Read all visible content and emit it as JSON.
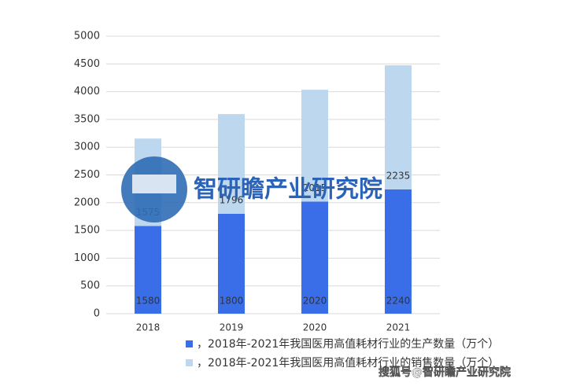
{
  "chart_data": {
    "type": "stacked_bar",
    "categories": [
      "2018",
      "2019",
      "2020",
      "2021"
    ],
    "series": [
      {
        "name": "，2018年-2021年我国医用高值耗材行业的生产数量（万个）",
        "color": "#3a6ee8",
        "values": [
          1580,
          1800,
          2020,
          2240
        ]
      },
      {
        "name": "，2018年-2021年我国医用高值耗材行业的销售数量（万个）",
        "color": "#bdd7ee",
        "values": [
          1575,
          1796,
          2015,
          2235
        ]
      }
    ],
    "ylim": [
      0,
      5000
    ],
    "yticks": [
      0,
      500,
      1000,
      1500,
      2000,
      2500,
      3000,
      3500,
      4000,
      4500,
      5000
    ],
    "grid": true,
    "watermark": "智研瞻产业研究院",
    "source": "搜狐号@智研瞻产业研究院"
  }
}
